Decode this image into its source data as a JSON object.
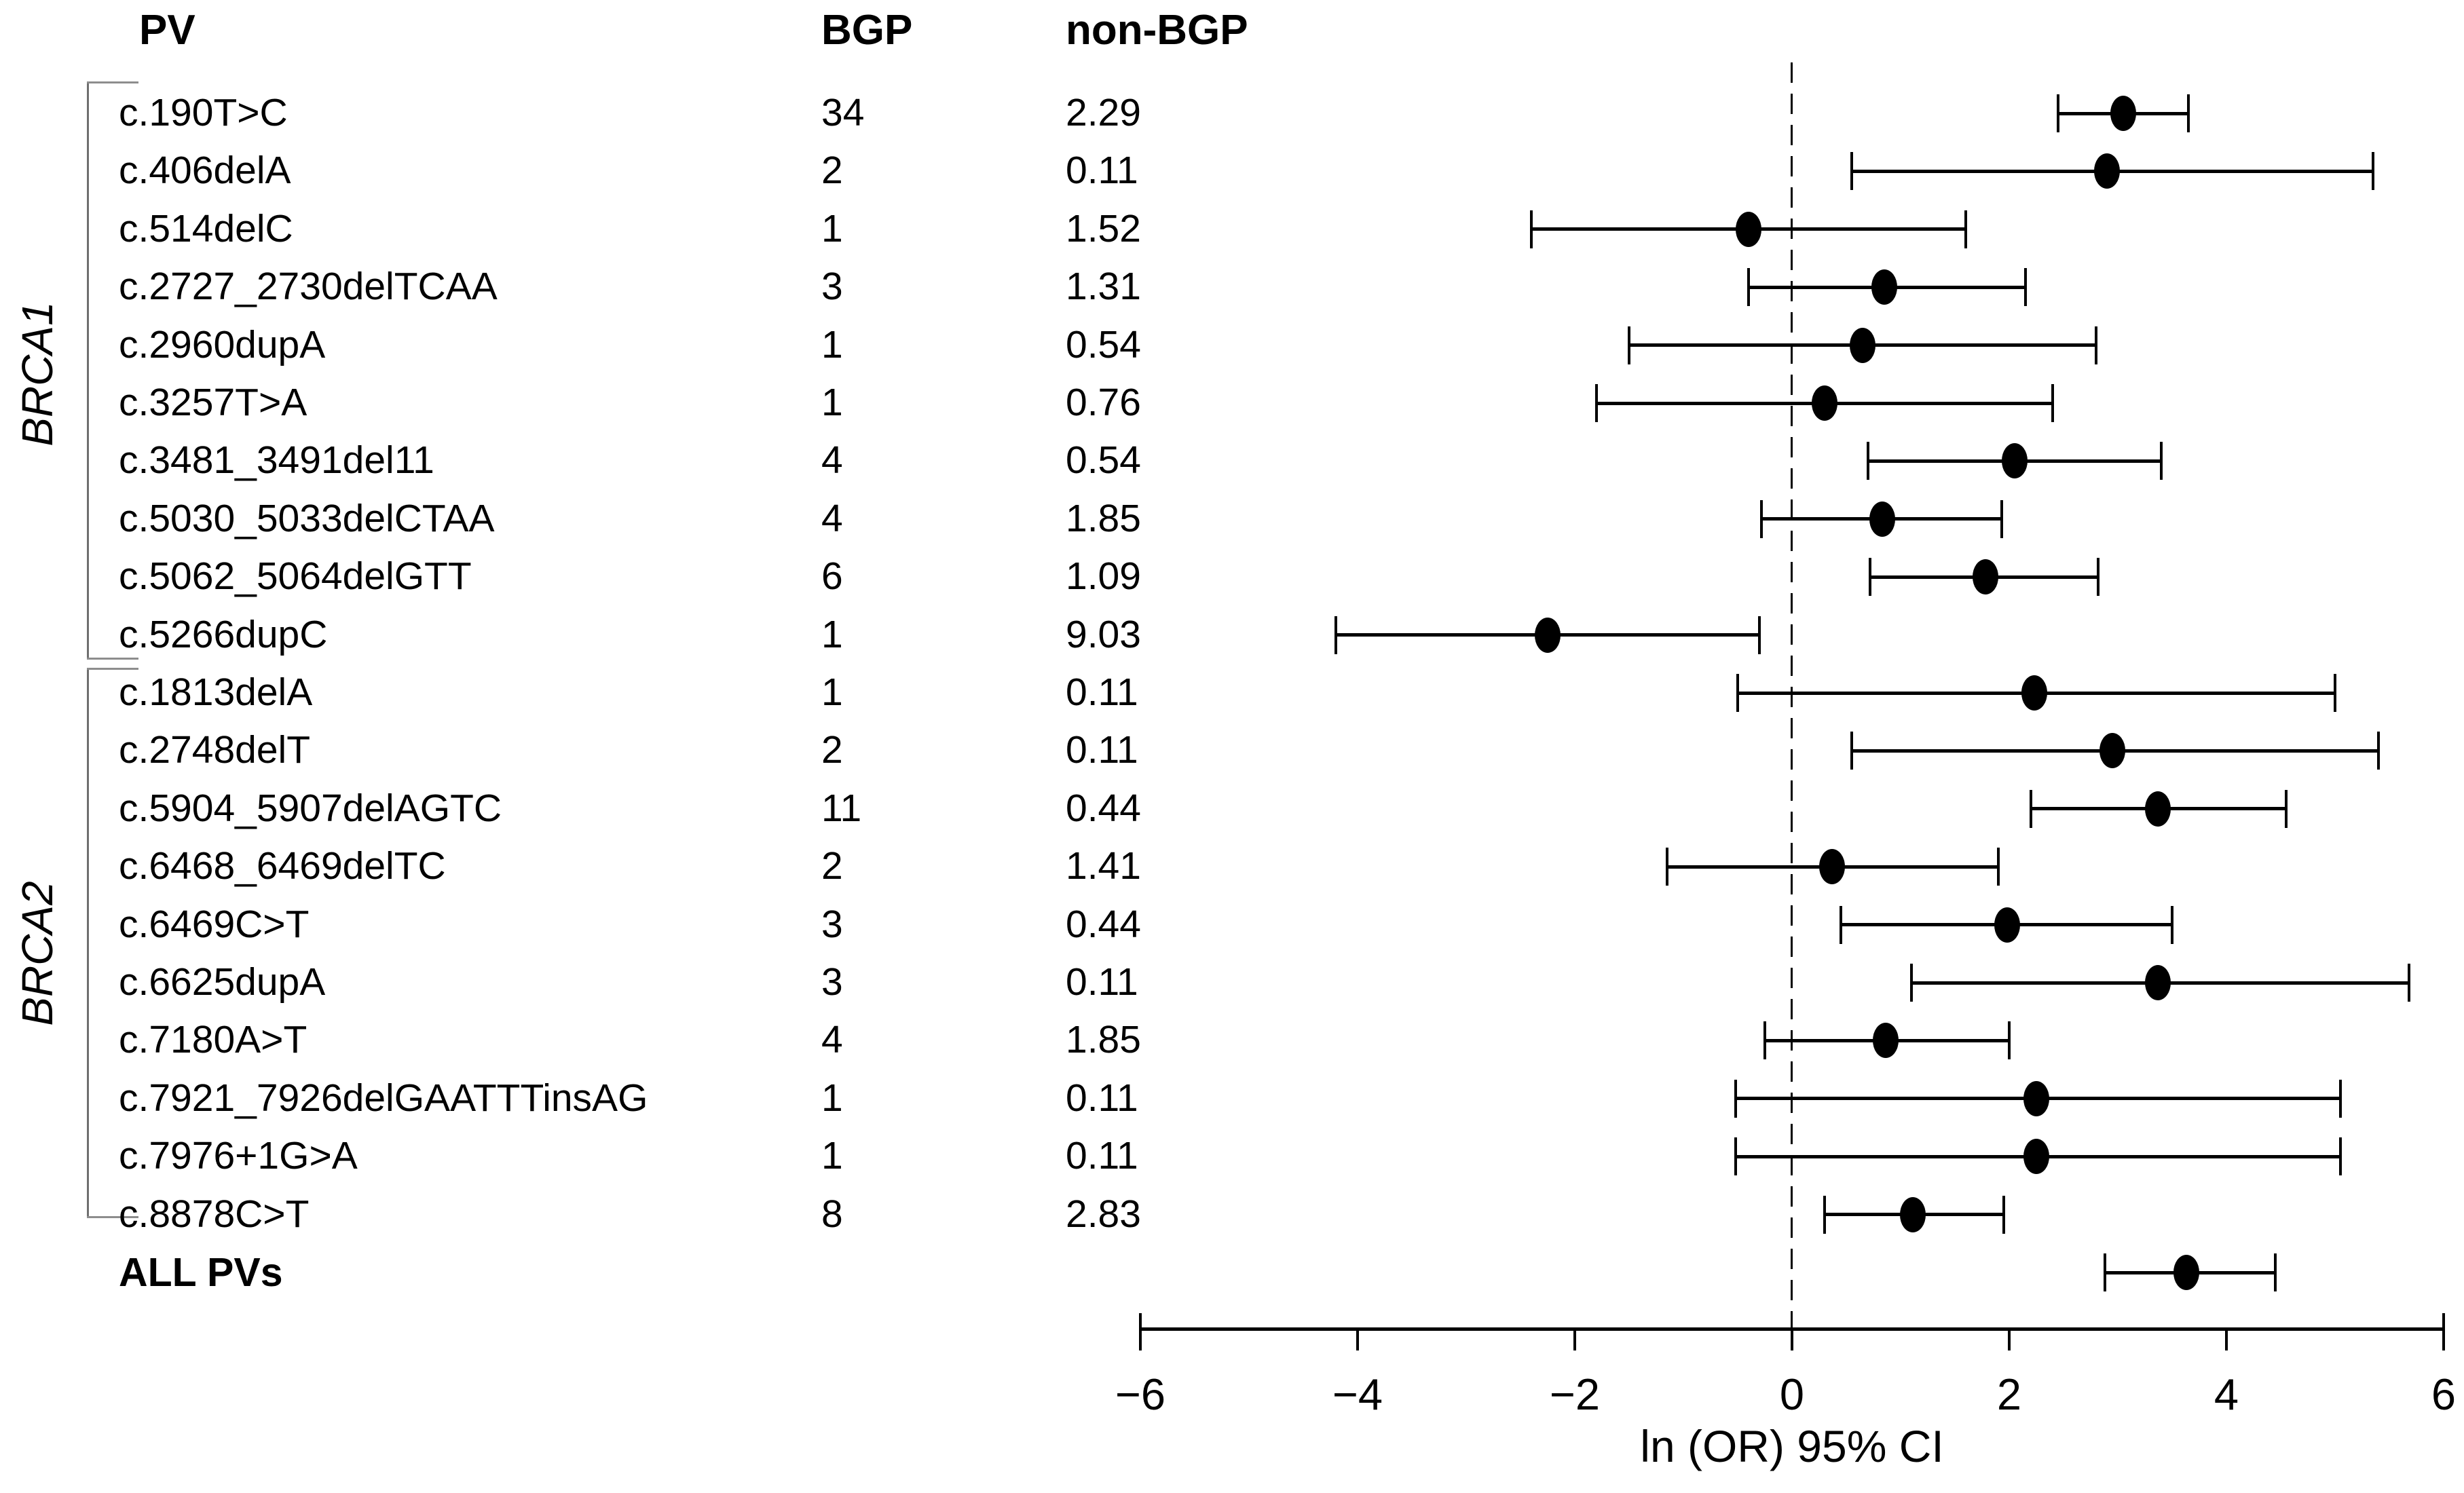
{
  "figure": {
    "columns": {
      "pv": "PV",
      "bgp": "BGP",
      "non_bgp": "non-BGP"
    },
    "gene_labels": {
      "brca1": "BRCA1",
      "brca2": "BRCA2"
    },
    "summary_label": "ALL PVs",
    "axis_label": "ln (OR) 95% CI"
  },
  "chart_data": {
    "type": "scatter",
    "subtype": "forest-plot",
    "xlabel": "ln (OR) 95% CI",
    "xlim": [
      -6,
      6
    ],
    "reference_line_x": 0,
    "grid": false,
    "x_ticks": [
      {
        "value": -6,
        "label": "−6"
      },
      {
        "value": -4,
        "label": "−4"
      },
      {
        "value": -2,
        "label": "−2"
      },
      {
        "value": 0,
        "label": "0"
      },
      {
        "value": 2,
        "label": "2"
      },
      {
        "value": 4,
        "label": "4"
      },
      {
        "value": 6,
        "label": "6"
      }
    ],
    "columns": [
      "PV",
      "BGP",
      "non-BGP"
    ],
    "groups": [
      {
        "gene": "BRCA1",
        "rows": [
          {
            "pv": "c.190T>C",
            "bgp": "34",
            "non_bgp": "2.29",
            "ln_or": 3.05,
            "ci_low": 2.45,
            "ci_high": 3.65
          },
          {
            "pv": "c.406delA",
            "bgp": "2",
            "non_bgp": "0.11",
            "ln_or": 2.9,
            "ci_low": 0.55,
            "ci_high": 5.35
          },
          {
            "pv": "c.514delC",
            "bgp": "1",
            "non_bgp": "1.52",
            "ln_or": -0.4,
            "ci_low": -2.4,
            "ci_high": 1.6
          },
          {
            "pv": "c.2727_2730delTCAA",
            "bgp": "3",
            "non_bgp": "1.31",
            "ln_or": 0.85,
            "ci_low": -0.4,
            "ci_high": 2.15
          },
          {
            "pv": "c.2960dupA",
            "bgp": "1",
            "non_bgp": "0.54",
            "ln_or": 0.65,
            "ci_low": -1.5,
            "ci_high": 2.8
          },
          {
            "pv": "c.3257T>A",
            "bgp": "1",
            "non_bgp": "0.76",
            "ln_or": 0.3,
            "ci_low": -1.8,
            "ci_high": 2.4
          },
          {
            "pv": "c.3481_3491del11",
            "bgp": "4",
            "non_bgp": "0.54",
            "ln_or": 2.05,
            "ci_low": 0.7,
            "ci_high": 3.4
          },
          {
            "pv": "c.5030_5033delCTAA",
            "bgp": "4",
            "non_bgp": "1.85",
            "ln_or": 0.83,
            "ci_low": -0.28,
            "ci_high": 1.93
          },
          {
            "pv": "c.5062_5064delGTT",
            "bgp": "6",
            "non_bgp": "1.09",
            "ln_or": 1.78,
            "ci_low": 0.72,
            "ci_high": 2.82
          },
          {
            "pv": "c.5266dupC",
            "bgp": "1",
            "non_bgp": "9.03",
            "ln_or": -2.25,
            "ci_low": -4.2,
            "ci_high": -0.3
          }
        ]
      },
      {
        "gene": "BRCA2",
        "rows": [
          {
            "pv": "c.1813delA",
            "bgp": "1",
            "non_bgp": "0.11",
            "ln_or": 2.23,
            "ci_low": -0.5,
            "ci_high": 5.0
          },
          {
            "pv": "c.2748delT",
            "bgp": "2",
            "non_bgp": "0.11",
            "ln_or": 2.95,
            "ci_low": 0.55,
            "ci_high": 5.4
          },
          {
            "pv": "c.5904_5907delAGTC",
            "bgp": "11",
            "non_bgp": "0.44",
            "ln_or": 3.37,
            "ci_low": 2.2,
            "ci_high": 4.55
          },
          {
            "pv": "c.6468_6469delTC",
            "bgp": "2",
            "non_bgp": "1.41",
            "ln_or": 0.37,
            "ci_low": -1.15,
            "ci_high": 1.9
          },
          {
            "pv": "c.6469C>T",
            "bgp": "3",
            "non_bgp": "0.44",
            "ln_or": 1.98,
            "ci_low": 0.45,
            "ci_high": 3.5
          },
          {
            "pv": "c.6625dupA",
            "bgp": "3",
            "non_bgp": "0.11",
            "ln_or": 3.37,
            "ci_low": 1.1,
            "ci_high": 5.68
          },
          {
            "pv": "c.7180A>T",
            "bgp": "4",
            "non_bgp": "1.85",
            "ln_or": 0.86,
            "ci_low": -0.25,
            "ci_high": 2.0
          },
          {
            "pv": "c.7921_7926delGAATTTinsAG",
            "bgp": "1",
            "non_bgp": "0.11",
            "ln_or": 2.25,
            "ci_low": -0.52,
            "ci_high": 5.05
          },
          {
            "pv": "c.7976+1G>A",
            "bgp": "1",
            "non_bgp": "0.11",
            "ln_or": 2.25,
            "ci_low": -0.52,
            "ci_high": 5.05
          },
          {
            "pv": "c.8878C>T",
            "bgp": "8",
            "non_bgp": "2.83",
            "ln_or": 1.11,
            "ci_low": 0.3,
            "ci_high": 1.95
          }
        ]
      }
    ],
    "summary": {
      "pv": "ALL PVs",
      "ln_or": 3.63,
      "ci_low": 2.88,
      "ci_high": 4.45
    },
    "marker_color": "#000000",
    "background_color": "#ffffff",
    "bracket_color": "#6f6f6f"
  }
}
